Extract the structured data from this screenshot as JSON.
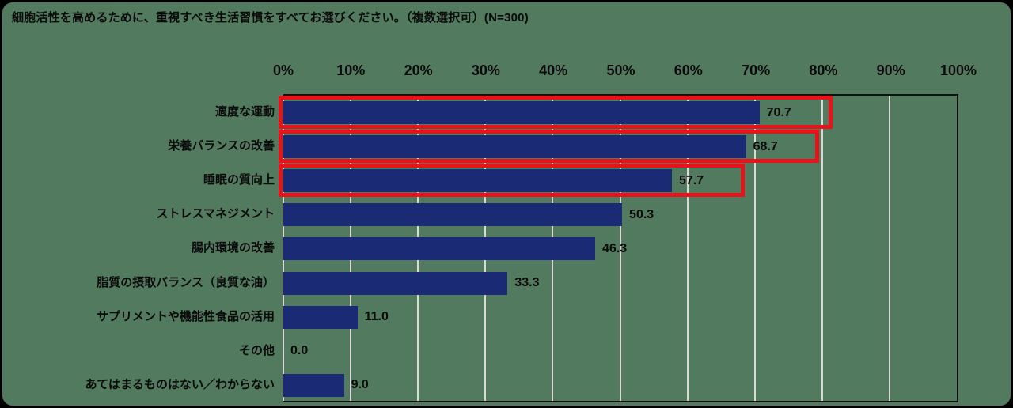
{
  "title": "細胞活性を高めるために、重視すべき生活習慣をすべてお選びください。（複数選択可）(N=300)",
  "colors": {
    "background": "#527a5f",
    "bar": "#1a2a74",
    "highlight_outline": "#e8121a",
    "gridline": "#d9d9d9",
    "text": "#0a0a0a"
  },
  "chart_data": {
    "type": "bar",
    "orientation": "horizontal",
    "title": "細胞活性を高めるために、重視すべき生活習慣をすべてお選びください。（複数選択可）(N=300)",
    "xlabel": "",
    "ylabel": "",
    "xlim": [
      0,
      100
    ],
    "grid": true,
    "x_axis_ticks": [
      "0%",
      "10%",
      "20%",
      "30%",
      "40%",
      "50%",
      "60%",
      "70%",
      "80%",
      "90%",
      "100%"
    ],
    "categories": [
      "適度な運動",
      "栄養バランスの改善",
      "睡眠の質向上",
      "ストレスマネジメント",
      "腸内環境の改善",
      "脂質の摂取バランス（良質な油）",
      "サプリメントや機能性食品の活用",
      "その他",
      "あてはまるものはない／わからない"
    ],
    "values": [
      70.7,
      68.7,
      57.7,
      50.3,
      46.3,
      33.3,
      11.0,
      0.0,
      9.0
    ],
    "value_labels": [
      "70.7",
      "68.7",
      "57.7",
      "50.3",
      "46.3",
      "33.3",
      "11.0",
      "0.0",
      "9.0"
    ],
    "highlighted": [
      true,
      true,
      true,
      false,
      false,
      false,
      false,
      false,
      false
    ],
    "legend": null,
    "annotation": "上位3項目（適度な運動・栄養バランスの改善・睡眠の質向上）が赤枠で強調されている"
  }
}
